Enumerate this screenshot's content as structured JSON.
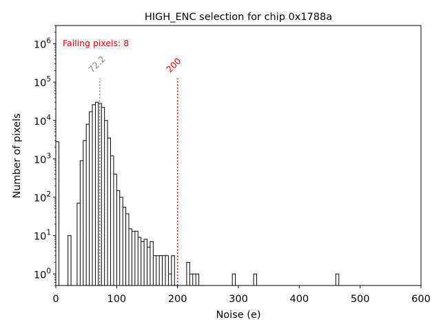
{
  "chart_data": {
    "type": "histogram",
    "title": "HIGH_ENC selection for chip 0x1788a",
    "xlabel": "Noise (e)",
    "ylabel": "Number of pixels",
    "xlim": [
      0,
      600
    ],
    "ylim": [
      0.5,
      3000000
    ],
    "yscale": "log",
    "grid": false,
    "x_ticks": [
      0,
      100,
      200,
      300,
      400,
      500,
      600
    ],
    "x_tick_labels": [
      "0",
      "100",
      "200",
      "300",
      "400",
      "500",
      "600"
    ],
    "y_ticks": [
      1,
      10,
      100,
      1000,
      10000,
      100000,
      1000000
    ],
    "y_tick_bases": [
      "10",
      "10",
      "10",
      "10",
      "10",
      "10",
      "10"
    ],
    "y_tick_exponents": [
      "0",
      "1",
      "2",
      "3",
      "4",
      "5",
      "6"
    ],
    "bin_width": 5,
    "bins": [
      [
        0,
        2800
      ],
      [
        20,
        10
      ],
      [
        35,
        70
      ],
      [
        40,
        900
      ],
      [
        45,
        3000
      ],
      [
        50,
        8000
      ],
      [
        55,
        17000
      ],
      [
        60,
        26000
      ],
      [
        65,
        30000
      ],
      [
        70,
        28000
      ],
      [
        75,
        22000
      ],
      [
        80,
        10000
      ],
      [
        85,
        3500
      ],
      [
        90,
        1200
      ],
      [
        95,
        400
      ],
      [
        100,
        150
      ],
      [
        105,
        100
      ],
      [
        110,
        55
      ],
      [
        115,
        37
      ],
      [
        120,
        15
      ],
      [
        125,
        13
      ],
      [
        130,
        13
      ],
      [
        135,
        9
      ],
      [
        140,
        7
      ],
      [
        145,
        8
      ],
      [
        150,
        5
      ],
      [
        155,
        7
      ],
      [
        160,
        3
      ],
      [
        165,
        3
      ],
      [
        170,
        3
      ],
      [
        175,
        3
      ],
      [
        180,
        3
      ],
      [
        185,
        1
      ],
      [
        190,
        3
      ],
      [
        195,
        0
      ],
      [
        215,
        2
      ],
      [
        220,
        1
      ],
      [
        225,
        1
      ],
      [
        230,
        1
      ],
      [
        290,
        1
      ],
      [
        325,
        1
      ],
      [
        460,
        1
      ]
    ],
    "annotations": {
      "failing_pixels": "Failing pixels: 8",
      "mean_label": "72.2",
      "mean_x": 72.2,
      "threshold_label": "200",
      "threshold_x": 200
    },
    "colors": {
      "histogram": "#000000",
      "mean_line": "#808080",
      "threshold_line": "#e00000",
      "failing_text": "#e00000"
    }
  }
}
